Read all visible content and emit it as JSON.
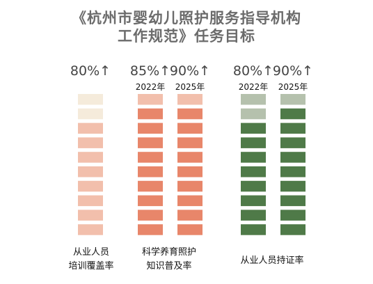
{
  "title": {
    "line1": "《杭州市婴幼儿照护服务指导机构",
    "line2": "工作规范》任务目标"
  },
  "chart_data": {
    "type": "bar",
    "title": "《杭州市婴幼儿照护服务指导机构工作规范》任务目标",
    "total_blocks": 10,
    "groups": [
      {
        "category_lines": [
          "从业人员",
          "培训覆盖率"
        ],
        "series": [
          {
            "value_label": "80%↑",
            "year": "",
            "value": 80,
            "filled_color": "#f2bfac",
            "empty_color": "#f5ebdb"
          }
        ]
      },
      {
        "category_lines": [
          "科学养育照护",
          "知识普及率"
        ],
        "series": [
          {
            "value_label": "85%↑",
            "year": "2022年",
            "value": 85,
            "filled_color": "#e8866a",
            "empty_color": "#f2bfac"
          },
          {
            "value_label": "90%↑",
            "year": "2025年",
            "value": 90,
            "filled_color": "#e8866a",
            "empty_color": "#f2bfac"
          }
        ]
      },
      {
        "category_lines": [
          "从业人员持证率"
        ],
        "series": [
          {
            "value_label": "80%↑",
            "year": "2022年",
            "value": 80,
            "filled_color": "#4f7a48",
            "empty_color": "#b5c1ad"
          },
          {
            "value_label": "90%↑",
            "year": "2025年",
            "value": 90,
            "filled_color": "#4f7a48",
            "empty_color": "#b5c1ad"
          }
        ]
      }
    ]
  }
}
